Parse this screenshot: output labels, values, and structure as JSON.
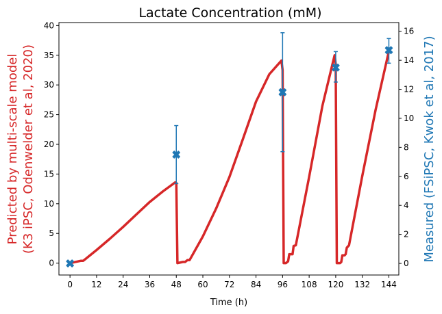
{
  "chart_data": {
    "type": "line",
    "title": "Lactate Concentration (mM)",
    "xlabel": "Time (h)",
    "xlim": [
      -5,
      148.5
    ],
    "xticks": [
      0,
      12,
      24,
      36,
      48,
      60,
      72,
      84,
      96,
      108,
      120,
      132,
      144
    ],
    "y_left": {
      "label_line1": "Predicted by multi-scale model",
      "label_line2": "(K3 iPSC, Odenwelder et al, 2020)",
      "lim": [
        -2,
        40.5
      ],
      "ticks": [
        0,
        5,
        10,
        15,
        20,
        25,
        30,
        35,
        40
      ],
      "color": "#d62728"
    },
    "y_right": {
      "label": "Measured (FSiPSC, Kwok et al, 2017)",
      "lim": [
        -0.8,
        16.6
      ],
      "ticks": [
        0,
        2,
        4,
        6,
        8,
        10,
        12,
        14,
        16
      ],
      "color": "#1f77b4"
    },
    "series": [
      {
        "axis": "left",
        "color": "#d62728",
        "x": [
          0,
          5,
          6,
          12,
          18,
          24,
          30,
          36,
          42,
          47.5,
          48,
          48.5,
          51,
          52,
          53,
          54,
          60,
          66,
          72,
          78,
          84,
          90,
          95.5,
          96,
          96.5,
          97.5,
          98.5,
          99,
          100,
          100.5,
          101,
          102,
          108,
          114,
          119.5,
          120,
          120.5,
          122,
          122.5,
          123,
          124,
          124.5,
          125,
          126,
          132,
          138,
          144
        ],
        "y": [
          0,
          0.4,
          0.4,
          2.2,
          4.1,
          6.1,
          8.2,
          10.3,
          12.1,
          13.6,
          13.5,
          0,
          0.2,
          0.2,
          0.5,
          0.5,
          4.5,
          9.2,
          14.5,
          20.8,
          27.2,
          31.8,
          34.1,
          32.5,
          0,
          0,
          0.3,
          1.5,
          1.5,
          1.5,
          2.9,
          3.0,
          14.5,
          26.5,
          35.0,
          33.5,
          0,
          0,
          0.2,
          1.3,
          1.3,
          1.5,
          2.6,
          3.0,
          14.7,
          25.8,
          35.7
        ]
      },
      {
        "axis": "right",
        "color": "#1f77b4",
        "x": [
          0,
          48,
          96,
          120,
          144
        ],
        "y": [
          0,
          7.5,
          11.8,
          13.5,
          14.7
        ],
        "err_low": [
          0,
          5.5,
          7.7,
          12.5,
          13.8
        ],
        "err_high": [
          0,
          9.5,
          15.9,
          14.6,
          15.5
        ]
      }
    ]
  }
}
